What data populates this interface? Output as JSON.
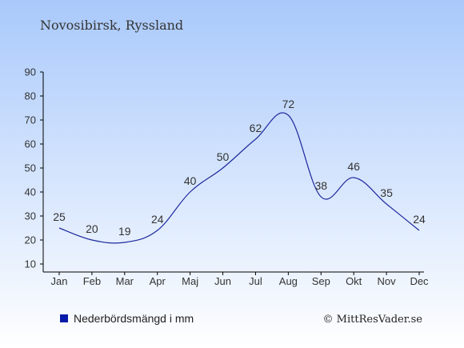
{
  "header": {
    "title": "Novosibirsk, Ryssland"
  },
  "legend": {
    "label": "Nederbördsmängd i mm",
    "color": "#0a1aa8"
  },
  "footer": {
    "copyright": "© MittResVader.se"
  },
  "colors": {
    "background_top": "#a9c9fb",
    "background_bottom": "#ffffff",
    "line": "#1f2a9e",
    "axis": "#000000",
    "text": "#333333"
  },
  "chart_data": {
    "type": "line",
    "categories": [
      "Jan",
      "Feb",
      "Mar",
      "Apr",
      "Maj",
      "Jun",
      "Jul",
      "Aug",
      "Sep",
      "Okt",
      "Nov",
      "Dec"
    ],
    "series": [
      {
        "values": [
          25,
          20,
          19,
          24,
          40,
          50,
          62,
          72,
          38,
          46,
          35,
          24
        ]
      }
    ],
    "data_labels": [
      "25",
      "20",
      "19",
      "24",
      "40",
      "50",
      "62",
      "72",
      "38",
      "46",
      "35",
      "24"
    ],
    "yticks": [
      10,
      20,
      30,
      40,
      50,
      60,
      70,
      80,
      90
    ],
    "ylim": [
      10,
      90
    ],
    "grid": false,
    "legend_position": "bottom-left"
  }
}
